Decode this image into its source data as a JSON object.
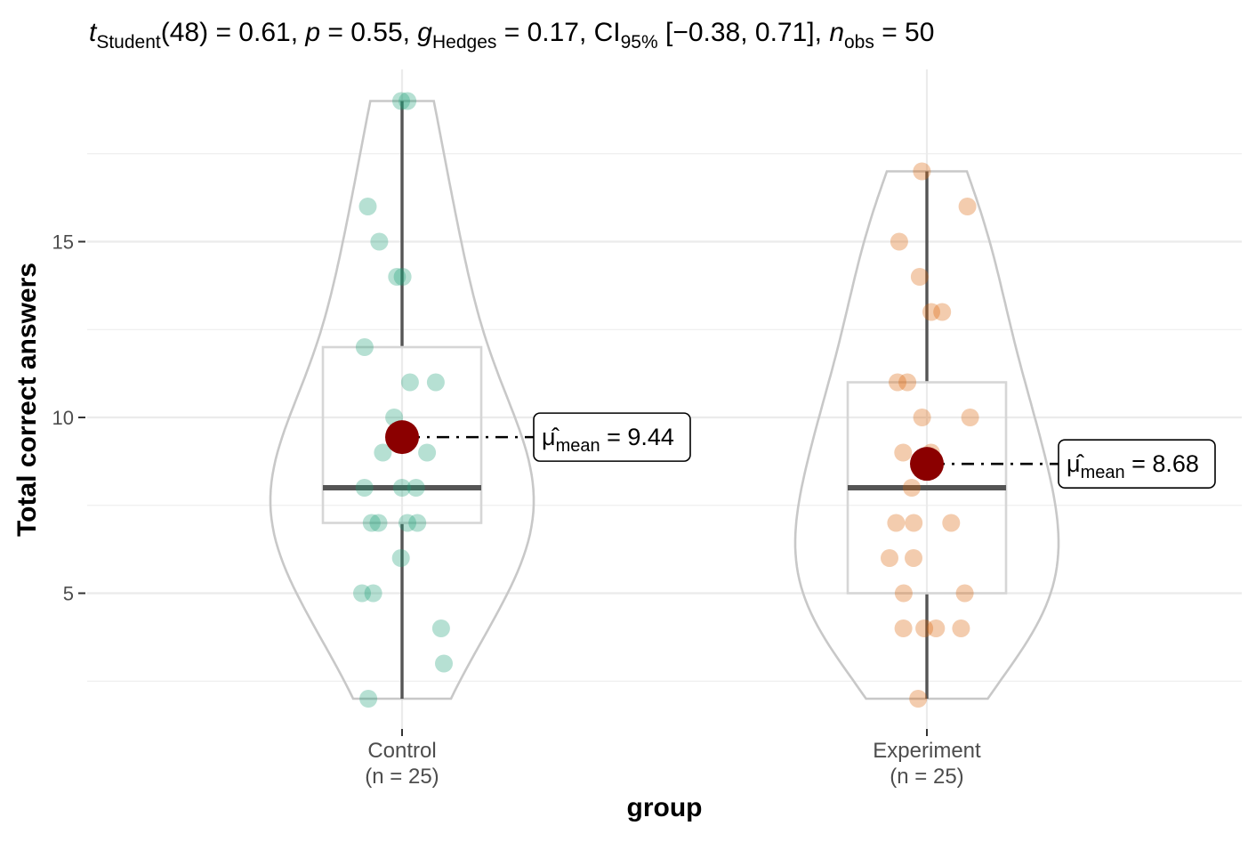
{
  "chart_data": {
    "type": "violin-box-scatter",
    "subtitle": {
      "t_label": "t",
      "t_sub": "Student",
      "df": "(48)",
      "t_value": " = 0.61, ",
      "p_label": "p",
      "p_value": " = 0.55, ",
      "g_label": "g",
      "g_sub": "Hedges",
      "g_value": " = 0.17, CI",
      "ci_sub": "95%",
      "ci_value": " [−0.38, 0.71], ",
      "n_label": "n",
      "n_sub": "obs",
      "n_value": " = 50"
    },
    "xlabel": "group",
    "ylabel": "Total correct answers",
    "ylim": [
      1.5,
      19.7
    ],
    "yticks": [
      5,
      10,
      15
    ],
    "ytick_labels": [
      "5",
      "10",
      "15"
    ],
    "categories": [
      {
        "label": "Control",
        "n_label": "(n = 25)"
      },
      {
        "label": "Experiment",
        "n_label": "(n = 25)"
      }
    ],
    "series": [
      {
        "group": "Control",
        "color": "#1b9e77",
        "values": [
          19,
          19,
          16,
          15,
          14,
          14,
          12,
          11,
          11,
          10,
          9,
          9,
          8,
          8,
          8,
          7,
          7,
          7,
          7,
          6,
          5,
          5,
          4,
          3,
          2
        ],
        "box": {
          "min": 2,
          "q1": 7,
          "median": 8,
          "q3": 12,
          "max": 19
        },
        "mean": 9.44,
        "mean_label_symbol": "μ̂",
        "mean_label_sub": "mean",
        "mean_label_value": " = 9.44"
      },
      {
        "group": "Experiment",
        "color": "#d95f02",
        "values": [
          17,
          16,
          15,
          14,
          13,
          13,
          11,
          11,
          10,
          10,
          9,
          9,
          8,
          7,
          7,
          7,
          6,
          6,
          5,
          5,
          4,
          4,
          4,
          4,
          2
        ],
        "box": {
          "min": 2,
          "q1": 5,
          "median": 8,
          "q3": 11,
          "max": 17
        },
        "mean": 8.68,
        "mean_label_symbol": "μ̂",
        "mean_label_sub": "mean",
        "mean_label_value": " = 8.68"
      }
    ],
    "mean_color": "#8b0000",
    "grid": true,
    "legend": "none"
  }
}
